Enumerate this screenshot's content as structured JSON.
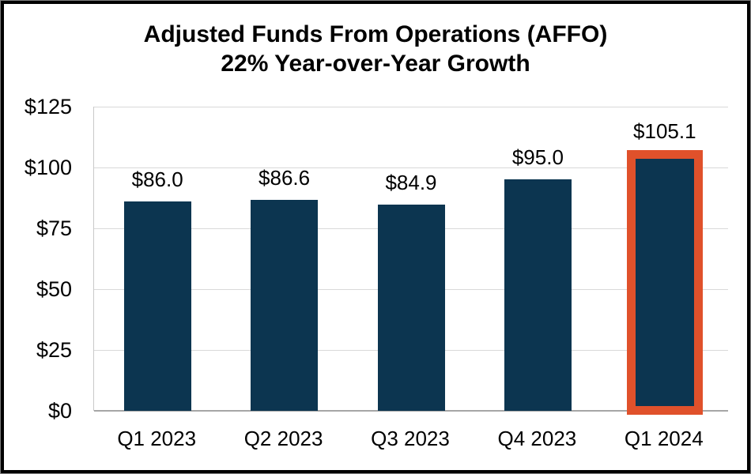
{
  "chart": {
    "title": "Adjusted Funds From Operations (AFFO)",
    "subtitle": "22% Year-over-Year Growth"
  },
  "chart_data": {
    "type": "bar",
    "title": "Adjusted Funds From Operations (AFFO)",
    "subtitle": "22% Year-over-Year Growth",
    "categories": [
      "Q1 2023",
      "Q2 2023",
      "Q3 2023",
      "Q4 2023",
      "Q1 2024"
    ],
    "values": [
      86.0,
      86.6,
      84.9,
      95.0,
      105.1
    ],
    "bar_labels": [
      "$86.0",
      "$86.6",
      "$84.9",
      "$95.0",
      "$105.1"
    ],
    "xlabel": "",
    "ylabel": "",
    "ylim": [
      0,
      125
    ],
    "ytick_interval": 25,
    "ytick_labels": [
      "$0",
      "$25",
      "$50",
      "$75",
      "$100",
      "$125"
    ],
    "grid": true,
    "legend": false,
    "highlight_index": 4,
    "colors": {
      "bar": "#0c3550",
      "highlight_border": "#e0512b",
      "gridline": "#d9d9d9",
      "baseline": "#a6a6a6",
      "axis_line": "#c9c9c9",
      "text": "#000000",
      "background": "#ffffff",
      "frame_border": "#000000"
    }
  }
}
